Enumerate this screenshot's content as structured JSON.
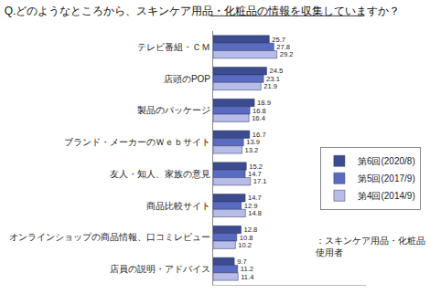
{
  "chart_data": {
    "type": "bar",
    "orientation": "horizontal",
    "title": "Q.どのようなところから、スキンケア用品・化粧品の情報を収集していますか？",
    "categories": [
      "テレビ番組・ＣＭ",
      "店頭のPOP",
      "製品のパッケージ",
      "ブランド・メーカーのＷｅｂサイト",
      "友人・知人、家族の意見",
      "商品比較サイト",
      "オンラインショップの商品情報、口コミレビュー",
      "店員の説明・アドバイス"
    ],
    "series": [
      {
        "name": "第6回(2020/8)",
        "color": "#3d4b8f",
        "values": [
          25.7,
          24.5,
          18.9,
          16.7,
          15.2,
          14.7,
          12.8,
          9.7
        ]
      },
      {
        "name": "第5回(2017/9)",
        "color": "#5a6cc2",
        "values": [
          27.8,
          23.1,
          16.8,
          13.9,
          14.7,
          12.9,
          10.8,
          11.2
        ]
      },
      {
        "name": "第4回(2014/9)",
        "color": "#b8bde8",
        "values": [
          29.2,
          21.9,
          16.4,
          13.2,
          17.1,
          14.8,
          10.2,
          11.4
        ]
      }
    ],
    "xlim": [
      0,
      70
    ],
    "xticks": [],
    "grid": false,
    "legend": "right",
    "data_labels": true,
    "tick_labels": "y",
    "annotation": [
      "：スキンケア用品・化粧品",
      "使用者"
    ]
  }
}
